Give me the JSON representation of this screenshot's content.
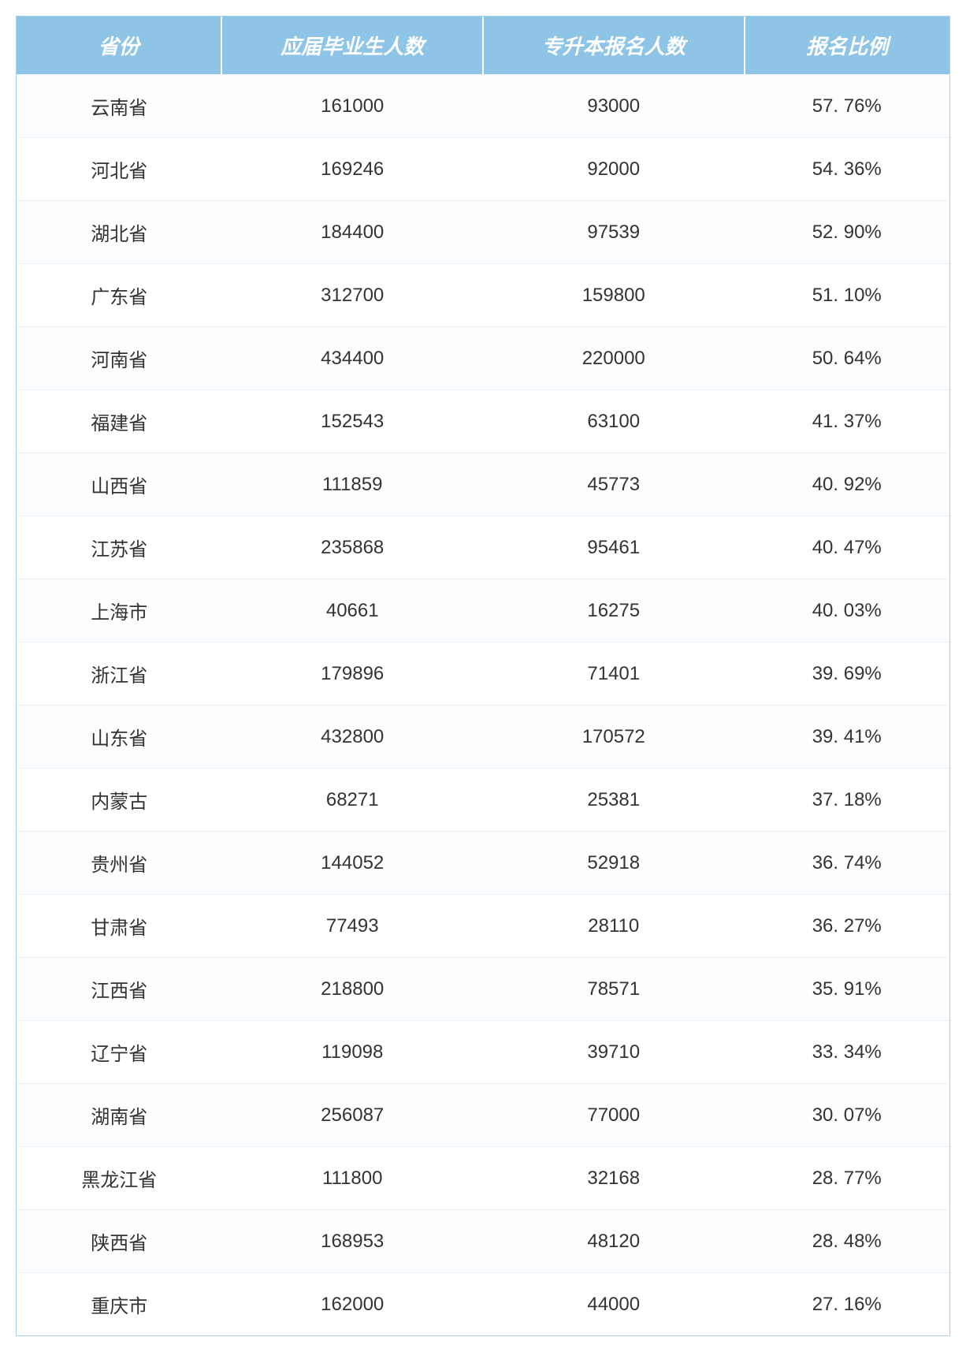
{
  "table": {
    "type": "table",
    "header_bg_color": "#8ec4e6",
    "header_text_color": "#ffffff",
    "header_fontsize": 26,
    "body_fontsize": 24,
    "body_text_color": "#333333",
    "border_color": "#a8cfe8",
    "row_border_color": "#e8f1f8",
    "columns": [
      {
        "key": "province",
        "label": "省份",
        "width": "22%"
      },
      {
        "key": "graduates",
        "label": "应届毕业生人数",
        "width": "28%"
      },
      {
        "key": "applicants",
        "label": "专升本报名人数",
        "width": "28%"
      },
      {
        "key": "ratio",
        "label": "报名比例",
        "width": "22%"
      }
    ],
    "rows": [
      {
        "province": "云南省",
        "graduates": "161000",
        "applicants": "93000",
        "ratio": "57. 76%"
      },
      {
        "province": "河北省",
        "graduates": "169246",
        "applicants": "92000",
        "ratio": "54. 36%"
      },
      {
        "province": "湖北省",
        "graduates": "184400",
        "applicants": "97539",
        "ratio": "52. 90%"
      },
      {
        "province": "广东省",
        "graduates": "312700",
        "applicants": "159800",
        "ratio": "51. 10%"
      },
      {
        "province": "河南省",
        "graduates": "434400",
        "applicants": "220000",
        "ratio": "50. 64%"
      },
      {
        "province": "福建省",
        "graduates": "152543",
        "applicants": "63100",
        "ratio": "41. 37%"
      },
      {
        "province": "山西省",
        "graduates": "111859",
        "applicants": "45773",
        "ratio": "40. 92%"
      },
      {
        "province": "江苏省",
        "graduates": "235868",
        "applicants": "95461",
        "ratio": "40. 47%"
      },
      {
        "province": "上海市",
        "graduates": "40661",
        "applicants": "16275",
        "ratio": "40. 03%"
      },
      {
        "province": "浙江省",
        "graduates": "179896",
        "applicants": "71401",
        "ratio": "39. 69%"
      },
      {
        "province": "山东省",
        "graduates": "432800",
        "applicants": "170572",
        "ratio": "39. 41%"
      },
      {
        "province": "内蒙古",
        "graduates": "68271",
        "applicants": "25381",
        "ratio": "37. 18%"
      },
      {
        "province": "贵州省",
        "graduates": "144052",
        "applicants": "52918",
        "ratio": "36. 74%"
      },
      {
        "province": "甘肃省",
        "graduates": "77493",
        "applicants": "28110",
        "ratio": "36. 27%"
      },
      {
        "province": "江西省",
        "graduates": "218800",
        "applicants": "78571",
        "ratio": "35. 91%"
      },
      {
        "province": "辽宁省",
        "graduates": "119098",
        "applicants": "39710",
        "ratio": "33. 34%"
      },
      {
        "province": "湖南省",
        "graduates": "256087",
        "applicants": "77000",
        "ratio": "30. 07%"
      },
      {
        "province": "黑龙江省",
        "graduates": "111800",
        "applicants": "32168",
        "ratio": "28. 77%"
      },
      {
        "province": "陕西省",
        "graduates": "168953",
        "applicants": "48120",
        "ratio": "28. 48%"
      },
      {
        "province": "重庆市",
        "graduates": "162000",
        "applicants": "44000",
        "ratio": "27. 16%"
      }
    ]
  }
}
